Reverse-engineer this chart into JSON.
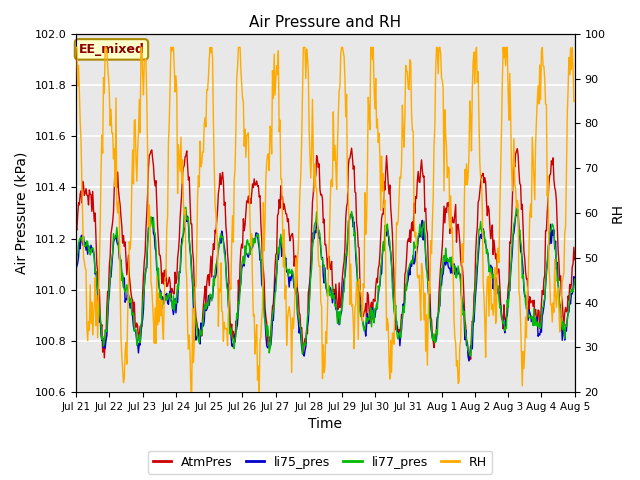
{
  "title": "Air Pressure and RH",
  "ylabel_left": "Air Pressure (kPa)",
  "ylabel_right": "RH",
  "xlabel": "Time",
  "annotation": "EE_mixed",
  "ylim_left": [
    100.6,
    102.0
  ],
  "ylim_right": [
    20,
    100
  ],
  "yticks_left": [
    100.6,
    100.8,
    101.0,
    101.2,
    101.4,
    101.6,
    101.8,
    102.0
  ],
  "yticks_right": [
    20,
    30,
    40,
    50,
    60,
    70,
    80,
    90,
    100
  ],
  "xtick_labels": [
    "Jul 21",
    "Jul 22",
    "Jul 23",
    "Jul 24",
    "Jul 25",
    "Jul 26",
    "Jul 27",
    "Jul 28",
    "Jul 29",
    "Jul 30",
    "Jul 31",
    "Aug 1",
    "Aug 2",
    "Aug 3",
    "Aug 4",
    "Aug 5"
  ],
  "colors": {
    "AtmPres": "#cc0000",
    "li75_pres": "#0000cc",
    "li77_pres": "#00bb00",
    "RH": "#ffaa00"
  },
  "background_color": "#ffffff",
  "plot_bg_color": "#e8e8e8",
  "grid_color": "#ffffff",
  "title_fontsize": 11,
  "tick_fontsize": 8,
  "label_fontsize": 10,
  "legend_fontsize": 9
}
